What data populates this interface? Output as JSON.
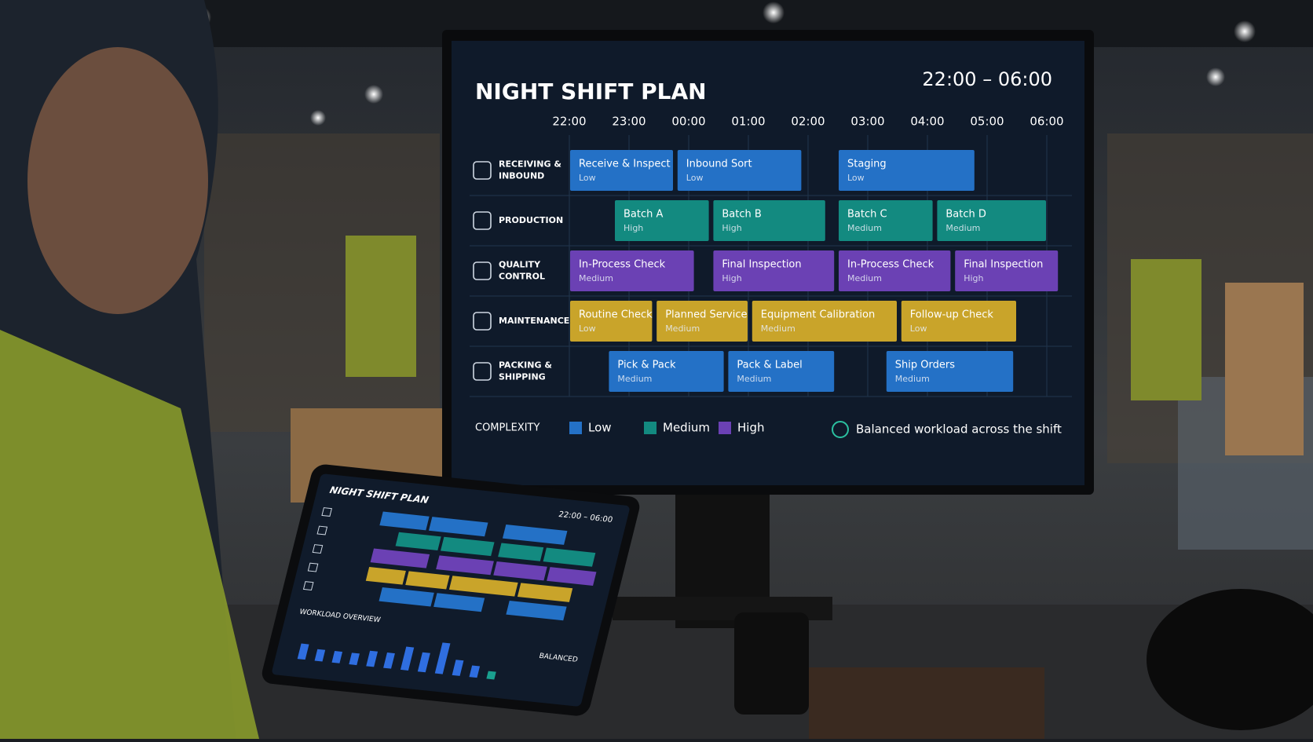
{
  "screen": {
    "title": "NIGHT SHIFT PLAN",
    "time_range": "22:00 – 06:00",
    "hours": [
      "22:00",
      "23:00",
      "00:00",
      "01:00",
      "02:00",
      "03:00",
      "04:00",
      "05:00",
      "06:00"
    ],
    "rows": [
      {
        "label": [
          "RECEIVING &",
          "INBOUND"
        ],
        "color": "#2471c6",
        "tasks": [
          {
            "name": "Receive & Inspect",
            "level": "Low",
            "start": 0,
            "end": 1.75
          },
          {
            "name": "Inbound Sort",
            "level": "Low",
            "start": 1.8,
            "end": 3.9
          },
          {
            "name": "Staging",
            "level": "Low",
            "start": 4.5,
            "end": 6.8
          }
        ]
      },
      {
        "label": [
          "PRODUCTION"
        ],
        "color": "#138a80",
        "tasks": [
          {
            "name": "Batch A",
            "level": "High",
            "start": 0.75,
            "end": 2.35
          },
          {
            "name": "Batch B",
            "level": "High",
            "start": 2.4,
            "end": 4.3
          },
          {
            "name": "Batch C",
            "level": "Medium",
            "start": 4.5,
            "end": 6.1
          },
          {
            "name": "Batch D",
            "level": "Medium",
            "start": 6.15,
            "end": 8
          }
        ]
      },
      {
        "label": [
          "QUALITY",
          "CONTROL"
        ],
        "color": "#6b41b4",
        "tasks": [
          {
            "name": "In-Process Check",
            "level": "Medium",
            "start": 0,
            "end": 2.1
          },
          {
            "name": "Final Inspection",
            "level": "High",
            "start": 2.4,
            "end": 4.45
          },
          {
            "name": "In-Process Check",
            "level": "Medium",
            "start": 4.5,
            "end": 6.4
          },
          {
            "name": "Final Inspection",
            "level": "High",
            "start": 6.45,
            "end": 8.2
          }
        ]
      },
      {
        "label": [
          "MAINTENANCE"
        ],
        "color": "#c9a42a",
        "tasks": [
          {
            "name": "Routine Check",
            "level": "Low",
            "start": 0,
            "end": 1.4
          },
          {
            "name": "Planned Service",
            "level": "Medium",
            "start": 1.45,
            "end": 3
          },
          {
            "name": "Equipment Calibration",
            "level": "Medium",
            "start": 3.05,
            "end": 5.5
          },
          {
            "name": "Follow-up Check",
            "level": "Low",
            "start": 5.55,
            "end": 7.5
          }
        ]
      },
      {
        "label": [
          "PACKING &",
          "SHIPPING"
        ],
        "color": "#2471c6",
        "tasks": [
          {
            "name": "Pick & Pack",
            "level": "Medium",
            "start": 0.65,
            "end": 2.6
          },
          {
            "name": "Pack & Label",
            "level": "Medium",
            "start": 2.65,
            "end": 4.45
          },
          {
            "name": "Ship Orders",
            "level": "Medium",
            "start": 5.3,
            "end": 7.45
          }
        ]
      }
    ],
    "legend": {
      "title": "COMPLEXITY",
      "items": [
        {
          "label": "Low",
          "color": "#2471c6"
        },
        {
          "label": "Medium",
          "color": "#138a80"
        },
        {
          "label": "High",
          "color": "#6b41b4"
        }
      ]
    },
    "status": "Balanced workload across the shift"
  },
  "tablet": {
    "title": "NIGHT SHIFT PLAN",
    "time_range": "22:00 – 06:00",
    "section": "WORKLOAD OVERVIEW",
    "status": "BALANCED",
    "workload": [
      4,
      3,
      3,
      3,
      4,
      4,
      6,
      5,
      8,
      4,
      3,
      2
    ]
  }
}
